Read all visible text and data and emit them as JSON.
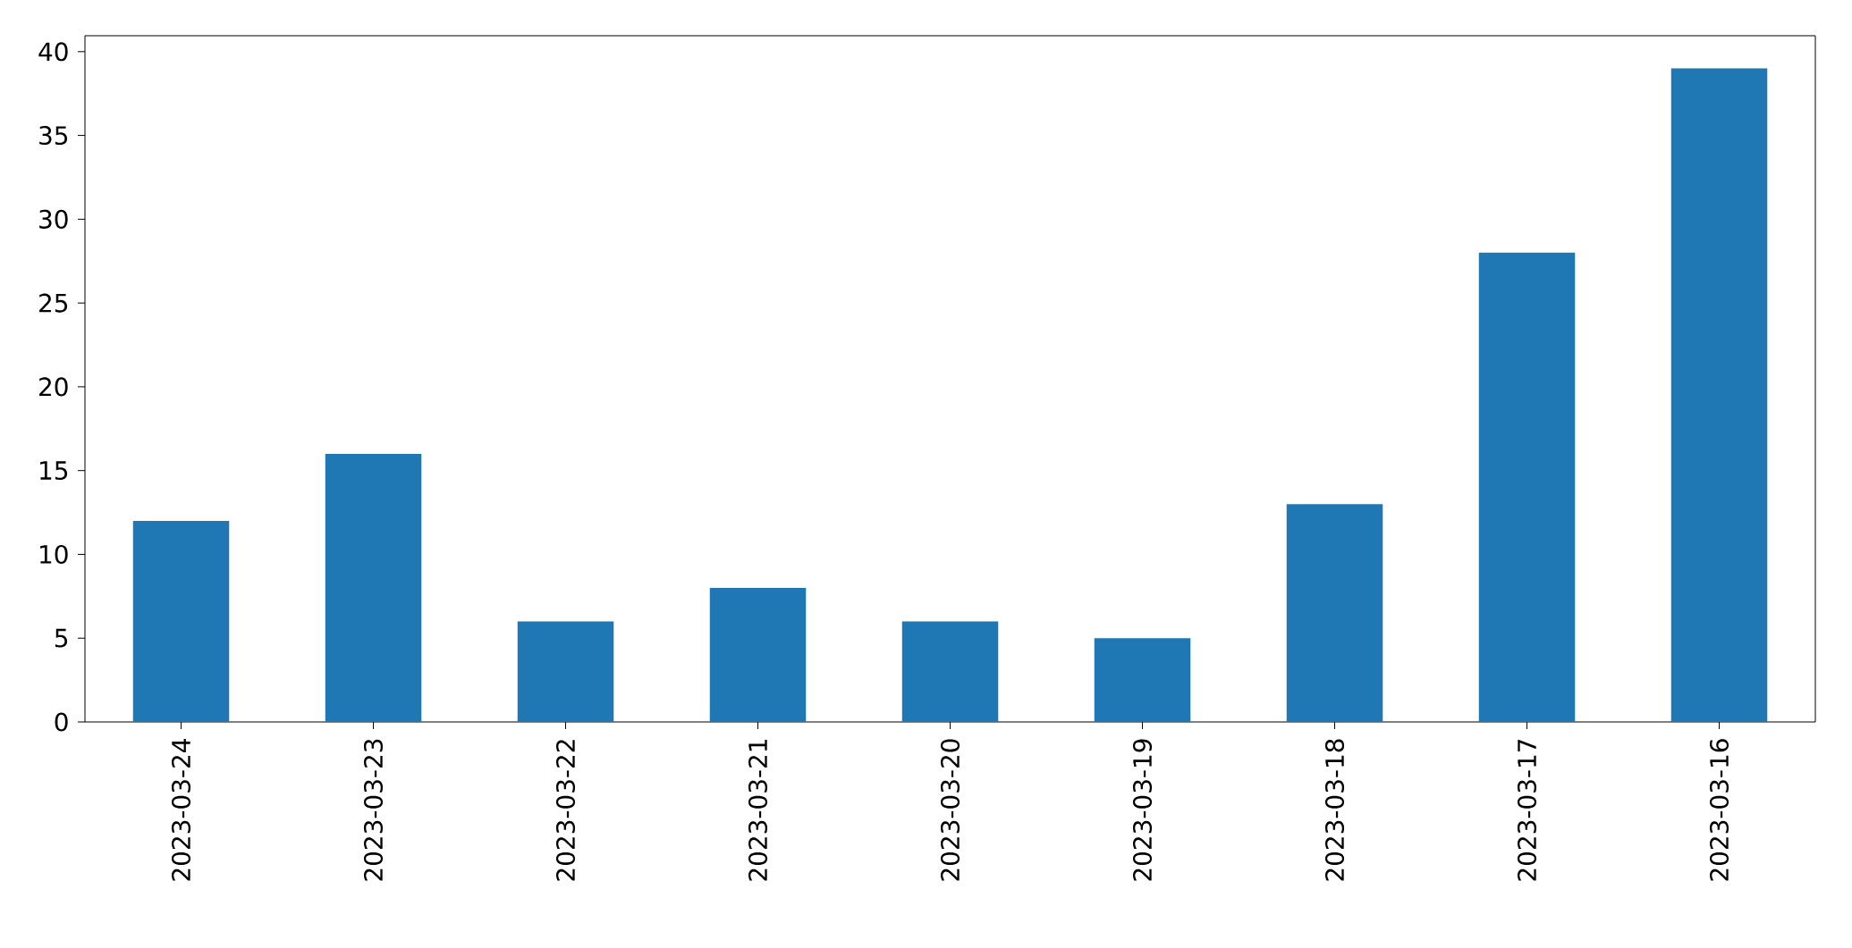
{
  "chart_data": {
    "type": "bar",
    "categories": [
      "2023-03-24",
      "2023-03-23",
      "2023-03-22",
      "2023-03-21",
      "2023-03-20",
      "2023-03-19",
      "2023-03-18",
      "2023-03-17",
      "2023-03-16"
    ],
    "values": [
      12,
      16,
      6,
      8,
      6,
      5,
      13,
      28,
      39
    ],
    "color": "#1f77b4",
    "ylim": [
      0,
      40.95
    ],
    "yticks": [
      0,
      5,
      10,
      15,
      20,
      25,
      30,
      35,
      40
    ]
  }
}
